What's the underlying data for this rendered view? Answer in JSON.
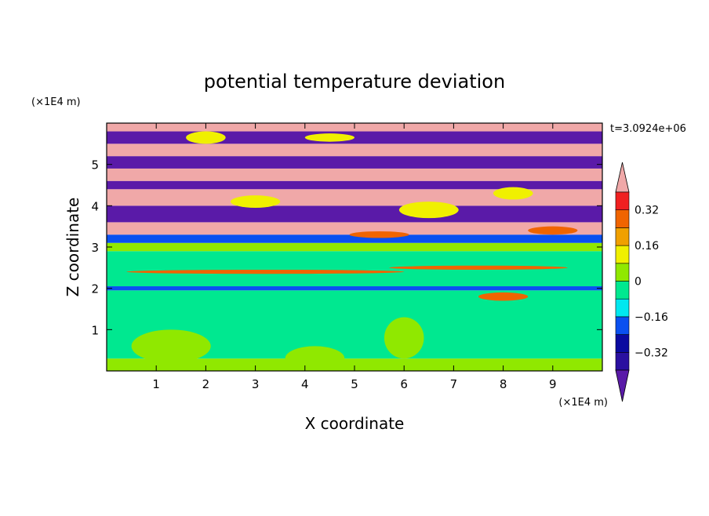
{
  "chart_data": {
    "type": "heatmap",
    "title": "potential temperature deviation",
    "xlabel": "X coordinate",
    "ylabel": "Z coordinate",
    "x_unit": "(×1E4 m)",
    "y_unit": "(×1E4 m)",
    "time_label": "t=3.0924e+06",
    "xlim": [
      0,
      10
    ],
    "ylim": [
      0,
      6
    ],
    "x_ticks": [
      1,
      2,
      3,
      4,
      5,
      6,
      7,
      8,
      9
    ],
    "y_ticks": [
      1,
      2,
      3,
      4,
      5
    ],
    "colorbar": {
      "levels": [
        -0.4,
        -0.32,
        -0.24,
        -0.16,
        -0.08,
        0,
        0.08,
        0.16,
        0.24,
        0.32,
        0.4
      ],
      "tick_labels": [
        {
          "value": 0.32,
          "label": "0.32"
        },
        {
          "value": 0.16,
          "label": "0.16"
        },
        {
          "value": 0,
          "label": "0"
        },
        {
          "value": -0.16,
          "label": "−0.16"
        },
        {
          "value": -0.32,
          "label": "−0.32"
        }
      ],
      "colors": [
        "#5a1aa8",
        "#2a10a0",
        "#0a0aa0",
        "#0a50f0",
        "#00e8f0",
        "#00e890",
        "#90e800",
        "#f0f000",
        "#f0a000",
        "#f06400",
        "#f02020",
        "#f0a8a8"
      ],
      "extend": "both"
    },
    "bands": [
      {
        "z0": 0.0,
        "z1": 0.3,
        "value": 0.05
      },
      {
        "z0": 0.3,
        "z1": 1.95,
        "value": -0.02
      },
      {
        "z0": 1.95,
        "z1": 2.05,
        "value": -0.2
      },
      {
        "z0": 2.05,
        "z1": 2.9,
        "value": -0.03
      },
      {
        "z0": 2.9,
        "z1": 3.1,
        "value": 0.02
      },
      {
        "z0": 3.1,
        "z1": 3.3,
        "value": -0.2
      },
      {
        "z0": 3.3,
        "z1": 3.6,
        "value": 0.45
      },
      {
        "z0": 3.6,
        "z1": 4.0,
        "value": -0.45
      },
      {
        "z0": 4.0,
        "z1": 4.4,
        "value": 0.45
      },
      {
        "z0": 4.4,
        "z1": 4.6,
        "value": -0.45
      },
      {
        "z0": 4.6,
        "z1": 4.9,
        "value": 0.45
      },
      {
        "z0": 4.9,
        "z1": 5.2,
        "value": -0.45
      },
      {
        "z0": 5.2,
        "z1": 5.5,
        "value": 0.45
      },
      {
        "z0": 5.5,
        "z1": 5.8,
        "value": -0.45
      },
      {
        "z0": 5.8,
        "z1": 6.0,
        "value": 0.45
      }
    ],
    "features": [
      {
        "x": 3.2,
        "z": 2.4,
        "rx": 2.8,
        "rz": 0.05,
        "value": 0.3
      },
      {
        "x": 7.5,
        "z": 2.5,
        "rx": 1.8,
        "rz": 0.05,
        "value": 0.3
      },
      {
        "x": 8.0,
        "z": 1.8,
        "rx": 0.5,
        "rz": 0.1,
        "value": 0.3
      },
      {
        "x": 1.3,
        "z": 0.6,
        "rx": 0.8,
        "rz": 0.4,
        "value": 0.05
      },
      {
        "x": 4.2,
        "z": 0.3,
        "rx": 0.6,
        "rz": 0.3,
        "value": 0.05
      },
      {
        "x": 6.0,
        "z": 0.8,
        "rx": 0.4,
        "rz": 0.5,
        "value": 0.05
      },
      {
        "x": 2.0,
        "z": 5.65,
        "rx": 0.4,
        "rz": 0.15,
        "value": 0.1
      },
      {
        "x": 4.5,
        "z": 5.65,
        "rx": 0.5,
        "rz": 0.1,
        "value": 0.1
      },
      {
        "x": 3.0,
        "z": 4.1,
        "rx": 0.5,
        "rz": 0.15,
        "value": 0.1
      },
      {
        "x": 6.5,
        "z": 3.9,
        "rx": 0.6,
        "rz": 0.2,
        "value": 0.1
      },
      {
        "x": 8.2,
        "z": 4.3,
        "rx": 0.4,
        "rz": 0.15,
        "value": 0.1
      },
      {
        "x": 9.0,
        "z": 3.4,
        "rx": 0.5,
        "rz": 0.1,
        "value": 0.3
      },
      {
        "x": 5.5,
        "z": 3.3,
        "rx": 0.6,
        "rz": 0.08,
        "value": 0.3
      }
    ]
  }
}
